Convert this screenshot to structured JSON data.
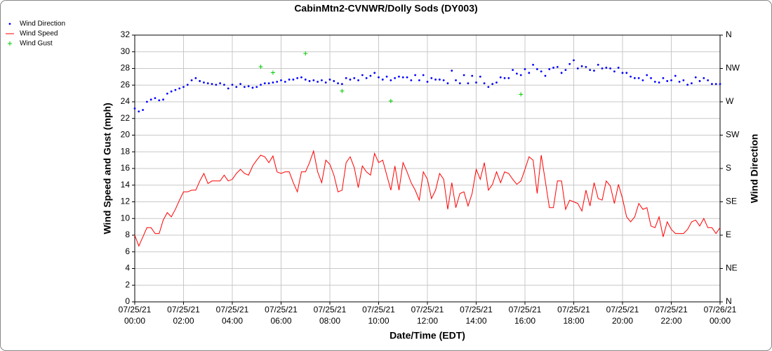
{
  "chart_data": {
    "type": "line",
    "title": "CabinMtn2-CVNWR/Dolly Sods (DY003)",
    "xlabel": "Date/Time (EDT)",
    "ylabel": "Wind Speed and Gust (mph)",
    "y2label": "Wind Direction",
    "legend": "upper left",
    "grid": true,
    "xlim": [
      "07/25/21 00:00",
      "07/26/21 00:00"
    ],
    "xticks": [
      "07/25/21 00:00",
      "07/25/21 02:00",
      "07/25/21 04:00",
      "07/25/21 06:00",
      "07/25/21 08:00",
      "07/25/21 10:00",
      "07/25/21 12:00",
      "07/25/21 14:00",
      "07/25/21 16:00",
      "07/25/21 18:00",
      "07/25/21 20:00",
      "07/25/21 22:00",
      "07/26/21 00:00"
    ],
    "ylim": [
      0,
      32
    ],
    "yticks": [
      0,
      2,
      4,
      6,
      8,
      10,
      12,
      14,
      16,
      18,
      20,
      22,
      24,
      26,
      28,
      30,
      32
    ],
    "y2lim": [
      0,
      360
    ],
    "y2ticks": [
      {
        "value": 0,
        "label": "N"
      },
      {
        "value": 45,
        "label": "NE"
      },
      {
        "value": 90,
        "label": "E"
      },
      {
        "value": 135,
        "label": "SE"
      },
      {
        "value": 180,
        "label": "S"
      },
      {
        "value": 225,
        "label": "SW"
      },
      {
        "value": 270,
        "label": "W"
      },
      {
        "value": 315,
        "label": "NW"
      },
      {
        "value": 360,
        "label": "N"
      }
    ],
    "x": [
      "07/25/21 00:00",
      "07/25/21 00:10",
      "07/25/21 00:20",
      "07/25/21 00:30",
      "07/25/21 00:40",
      "07/25/21 00:50",
      "07/25/21 01:00",
      "07/25/21 01:10",
      "07/25/21 01:20",
      "07/25/21 01:30",
      "07/25/21 01:40",
      "07/25/21 01:50",
      "07/25/21 02:00",
      "07/25/21 02:10",
      "07/25/21 02:20",
      "07/25/21 02:30",
      "07/25/21 02:40",
      "07/25/21 02:50",
      "07/25/21 03:00",
      "07/25/21 03:10",
      "07/25/21 03:20",
      "07/25/21 03:30",
      "07/25/21 03:40",
      "07/25/21 03:50",
      "07/25/21 04:00",
      "07/25/21 04:10",
      "07/25/21 04:20",
      "07/25/21 04:30",
      "07/25/21 04:40",
      "07/25/21 04:50",
      "07/25/21 05:00",
      "07/25/21 05:10",
      "07/25/21 05:20",
      "07/25/21 05:30",
      "07/25/21 05:40",
      "07/25/21 05:50",
      "07/25/21 06:00",
      "07/25/21 06:10",
      "07/25/21 06:20",
      "07/25/21 06:30",
      "07/25/21 06:40",
      "07/25/21 06:50",
      "07/25/21 07:00",
      "07/25/21 07:10",
      "07/25/21 07:20",
      "07/25/21 07:30",
      "07/25/21 07:40",
      "07/25/21 07:50",
      "07/25/21 08:00",
      "07/25/21 08:10",
      "07/25/21 08:20",
      "07/25/21 08:30",
      "07/25/21 08:40",
      "07/25/21 08:50",
      "07/25/21 09:00",
      "07/25/21 09:10",
      "07/25/21 09:20",
      "07/25/21 09:30",
      "07/25/21 09:40",
      "07/25/21 09:50",
      "07/25/21 10:00",
      "07/25/21 10:10",
      "07/25/21 10:20",
      "07/25/21 10:30",
      "07/25/21 10:40",
      "07/25/21 10:50",
      "07/25/21 11:00",
      "07/25/21 11:10",
      "07/25/21 11:20",
      "07/25/21 11:30",
      "07/25/21 11:40",
      "07/25/21 11:50",
      "07/25/21 12:00",
      "07/25/21 12:10",
      "07/25/21 12:20",
      "07/25/21 12:30",
      "07/25/21 12:40",
      "07/25/21 12:50",
      "07/25/21 13:00",
      "07/25/21 13:10",
      "07/25/21 13:20",
      "07/25/21 13:30",
      "07/25/21 13:40",
      "07/25/21 13:50",
      "07/25/21 14:00",
      "07/25/21 14:10",
      "07/25/21 14:20",
      "07/25/21 14:30",
      "07/25/21 14:40",
      "07/25/21 14:50",
      "07/25/21 15:00",
      "07/25/21 15:10",
      "07/25/21 15:20",
      "07/25/21 15:30",
      "07/25/21 15:40",
      "07/25/21 15:50",
      "07/25/21 16:00",
      "07/25/21 16:10",
      "07/25/21 16:20",
      "07/25/21 16:30",
      "07/25/21 16:40",
      "07/25/21 16:50",
      "07/25/21 17:00",
      "07/25/21 17:10",
      "07/25/21 17:20",
      "07/25/21 17:30",
      "07/25/21 17:40",
      "07/25/21 17:50",
      "07/25/21 18:00",
      "07/25/21 18:10",
      "07/25/21 18:20",
      "07/25/21 18:30",
      "07/25/21 18:40",
      "07/25/21 18:50",
      "07/25/21 19:00",
      "07/25/21 19:10",
      "07/25/21 19:20",
      "07/25/21 19:30",
      "07/25/21 19:40",
      "07/25/21 19:50",
      "07/25/21 20:00",
      "07/25/21 20:10",
      "07/25/21 20:20",
      "07/25/21 20:30",
      "07/25/21 20:40",
      "07/25/21 20:50",
      "07/25/21 21:00",
      "07/25/21 21:10",
      "07/25/21 21:20",
      "07/25/21 21:30",
      "07/25/21 21:40",
      "07/25/21 21:50",
      "07/25/21 22:00",
      "07/25/21 22:10",
      "07/25/21 22:20",
      "07/25/21 22:30",
      "07/25/21 22:40",
      "07/25/21 22:50",
      "07/25/21 23:00",
      "07/25/21 23:10",
      "07/25/21 23:20",
      "07/25/21 23:30",
      "07/25/21 23:40",
      "07/25/21 23:50",
      "07/26/21 00:00"
    ],
    "series": [
      {
        "name": "Wind Direction",
        "color": "#0000ff",
        "marker": "dot",
        "axis": "y2",
        "values": [
          261,
          257,
          259,
          270,
          273,
          275,
          272,
          273,
          281,
          284,
          286,
          288,
          290,
          293,
          299,
          302,
          298,
          296,
          295,
          294,
          293,
          295,
          293,
          288,
          293,
          290,
          294,
          290,
          291,
          289,
          290,
          293,
          295,
          295,
          296,
          297,
          299,
          297,
          300,
          300,
          302,
          303,
          300,
          298,
          299,
          297,
          299,
          296,
          300,
          298,
          295,
          294,
          302,
          300,
          302,
          299,
          306,
          302,
          305,
          309,
          303,
          300,
          304,
          299,
          302,
          304,
          303,
          303,
          299,
          306,
          299,
          306,
          297,
          302,
          300,
          300,
          299,
          295,
          312,
          299,
          295,
          306,
          295,
          305,
          296,
          304,
          295,
          290,
          294,
          296,
          303,
          302,
          302,
          313,
          308,
          306,
          314,
          309,
          320,
          314,
          311,
          305,
          314,
          316,
          317,
          309,
          313,
          321,
          326,
          315,
          318,
          317,
          313,
          312,
          320,
          315,
          316,
          315,
          311,
          316,
          309,
          309,
          304,
          302,
          302,
          299,
          306,
          302,
          297,
          296,
          302,
          298,
          299,
          305,
          297,
          299,
          293,
          295,
          303,
          298,
          302,
          299,
          294,
          294,
          294
        ]
      },
      {
        "name": "Wind Speed",
        "color": "#ff0000",
        "marker": "line",
        "values": [
          8.0,
          6.7,
          7.8,
          8.9,
          8.9,
          8.2,
          8.2,
          9.8,
          10.7,
          10.2,
          11.1,
          12.2,
          13.2,
          13.2,
          13.4,
          13.4,
          14.5,
          15.4,
          14.2,
          14.5,
          14.5,
          14.5,
          15.2,
          14.5,
          14.7,
          15.4,
          15.9,
          15.4,
          15.2,
          16.3,
          17.0,
          17.6,
          17.4,
          16.7,
          17.5,
          15.6,
          15.4,
          15.6,
          15.6,
          14.3,
          13.2,
          15.6,
          15.6,
          16.7,
          18.1,
          15.6,
          14.3,
          17.0,
          16.5,
          15.2,
          13.2,
          13.4,
          16.7,
          17.4,
          16.1,
          13.7,
          16.3,
          15.6,
          15.2,
          17.8,
          16.7,
          17.0,
          15.2,
          13.4,
          16.3,
          13.4,
          16.7,
          15.6,
          14.3,
          13.4,
          12.2,
          15.6,
          14.7,
          12.4,
          13.4,
          15.4,
          14.7,
          11.1,
          14.3,
          11.3,
          13.0,
          13.2,
          11.5,
          13.0,
          15.9,
          14.7,
          16.7,
          13.4,
          14.1,
          15.6,
          14.3,
          15.6,
          15.4,
          14.7,
          14.1,
          14.5,
          15.9,
          17.4,
          17.0,
          13.0,
          17.6,
          14.5,
          11.3,
          11.3,
          14.5,
          14.5,
          11.1,
          12.2,
          12.0,
          11.8,
          10.9,
          13.4,
          11.5,
          14.3,
          12.4,
          12.2,
          14.5,
          13.9,
          11.8,
          14.1,
          12.4,
          10.2,
          9.6,
          10.2,
          11.8,
          11.1,
          11.3,
          9.1,
          8.9,
          10.2,
          7.8,
          9.6,
          8.7,
          8.2,
          8.2,
          8.2,
          8.7,
          9.6,
          9.8,
          9.1,
          10.0,
          8.9,
          8.9,
          8.2,
          8.9
        ]
      },
      {
        "name": "Wind Gust",
        "color": "#00cc00",
        "marker": "plus",
        "values": [
          null,
          null,
          null,
          null,
          null,
          null,
          null,
          null,
          null,
          null,
          null,
          null,
          null,
          null,
          null,
          null,
          null,
          null,
          null,
          null,
          null,
          null,
          null,
          null,
          null,
          null,
          null,
          null,
          null,
          null,
          null,
          28.2,
          null,
          null,
          27.5,
          null,
          null,
          null,
          null,
          null,
          null,
          null,
          29.8,
          null,
          null,
          null,
          null,
          null,
          null,
          null,
          null,
          25.3,
          null,
          null,
          null,
          null,
          null,
          null,
          null,
          null,
          null,
          null,
          null,
          24.1,
          null,
          null,
          null,
          null,
          null,
          null,
          null,
          null,
          null,
          null,
          null,
          null,
          null,
          null,
          null,
          null,
          null,
          null,
          null,
          null,
          null,
          null,
          null,
          null,
          null,
          null,
          null,
          null,
          null,
          null,
          null,
          24.9,
          null,
          null,
          null,
          null,
          null,
          null,
          null,
          null,
          null,
          null,
          null,
          null,
          null,
          null,
          null,
          null,
          null,
          null,
          null,
          null,
          null,
          null,
          null,
          null,
          null,
          null,
          null,
          null,
          null,
          null,
          null,
          null,
          null,
          null,
          null,
          null,
          null,
          null,
          null,
          null,
          null,
          null,
          null,
          null,
          null,
          null,
          null,
          null,
          null
        ]
      }
    ]
  }
}
